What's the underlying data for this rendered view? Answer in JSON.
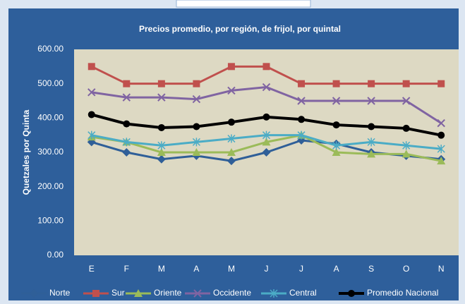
{
  "chart_data": {
    "type": "line",
    "title": "Precios promedio, por región,  de frijol, por quintal",
    "y_label": "Quetzales por Quinta",
    "categories": [
      "E",
      "F",
      "M",
      "A",
      "M",
      "J",
      "J",
      "A",
      "S",
      "O",
      "N"
    ],
    "series": [
      {
        "name": "Norte",
        "color": "#2f5f98",
        "marker": "diamond",
        "values": [
          330,
          300,
          280,
          290,
          275,
          300,
          335,
          325,
          300,
          290,
          280
        ]
      },
      {
        "name": "Sur",
        "color": "#c0504d",
        "marker": "square",
        "values": [
          550,
          500,
          500,
          500,
          550,
          550,
          500,
          500,
          500,
          500,
          500
        ]
      },
      {
        "name": "Oriente",
        "color": "#9bbb59",
        "marker": "triangle",
        "values": [
          345,
          330,
          300,
          300,
          300,
          330,
          350,
          300,
          295,
          295,
          275
        ]
      },
      {
        "name": "Occidente",
        "color": "#8064a2",
        "marker": "x",
        "values": [
          475,
          460,
          460,
          455,
          480,
          490,
          450,
          450,
          450,
          450,
          385
        ]
      },
      {
        "name": "Central",
        "color": "#4bacc6",
        "marker": "star",
        "values": [
          350,
          330,
          320,
          330,
          340,
          350,
          350,
          320,
          330,
          320,
          310
        ]
      },
      {
        "name": "Promedio Nacional",
        "color": "#000000",
        "marker": "circle",
        "values": [
          410,
          383,
          372,
          375,
          388,
          403,
          396,
          380,
          375,
          370,
          350
        ]
      }
    ],
    "ylim": [
      0,
      600
    ],
    "yticks": [
      {
        "value": 0,
        "label": "0.00"
      },
      {
        "value": 100,
        "label": "100.00"
      },
      {
        "value": 200,
        "label": "200.00"
      },
      {
        "value": 300,
        "label": "300.00"
      },
      {
        "value": 400,
        "label": "400.00"
      },
      {
        "value": 500,
        "label": "500.00"
      },
      {
        "value": 600,
        "label": "600.00"
      }
    ],
    "grid": false,
    "legend": "bottom"
  }
}
